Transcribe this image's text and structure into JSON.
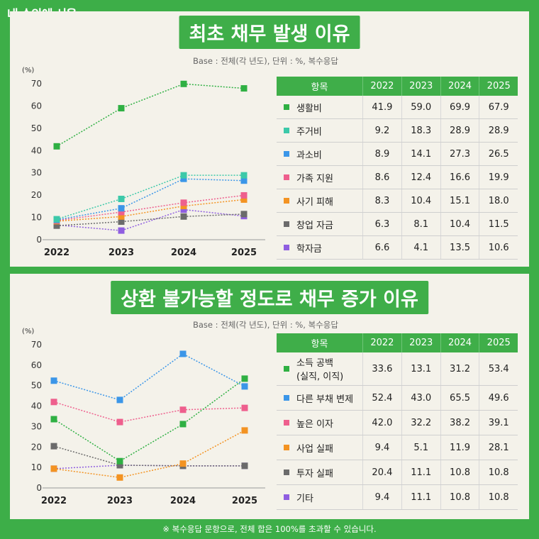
{
  "brand": "내 손안에 서울",
  "footnote": "※ 복수응답 문항으로, 전체 합은 100%를 초과할 수 있습니다.",
  "table_header": {
    "item": "항목",
    "years": [
      "2022",
      "2023",
      "2024",
      "2025"
    ]
  },
  "chart_data": [
    {
      "type": "line",
      "title": "최초 채무 발생 이유",
      "subtitle": "Base : 전체(각 년도), 단위 : %, 복수응답",
      "ylabel": "(%)",
      "ylim": [
        0,
        70
      ],
      "yticks": [
        "0",
        "10",
        "20",
        "30",
        "40",
        "50",
        "60",
        "70"
      ],
      "x": [
        "2022",
        "2023",
        "2024",
        "2025"
      ],
      "series": [
        {
          "name": "생활비",
          "color": "#2fb043",
          "values": [
            41.9,
            59.0,
            69.9,
            67.9
          ],
          "labels": [
            "41.9",
            "59.0",
            "69.9",
            "67.9"
          ]
        },
        {
          "name": "주거비",
          "color": "#3cc9a9",
          "values": [
            9.2,
            18.3,
            28.9,
            28.9
          ],
          "labels": [
            "9.2",
            "18.3",
            "28.9",
            "28.9"
          ]
        },
        {
          "name": "과소비",
          "color": "#3b96e8",
          "values": [
            8.9,
            14.1,
            27.3,
            26.5
          ],
          "labels": [
            "8.9",
            "14.1",
            "27.3",
            "26.5"
          ]
        },
        {
          "name": "가족 지원",
          "color": "#ee5f8d",
          "values": [
            8.6,
            12.4,
            16.6,
            19.9
          ],
          "labels": [
            "8.6",
            "12.4",
            "16.6",
            "19.9"
          ]
        },
        {
          "name": "사기 피해",
          "color": "#f39322",
          "values": [
            8.3,
            10.4,
            15.1,
            18.0
          ],
          "labels": [
            "8.3",
            "10.4",
            "15.1",
            "18.0"
          ]
        },
        {
          "name": "창업 자금",
          "color": "#6b6b6b",
          "values": [
            6.3,
            8.1,
            10.4,
            11.5
          ],
          "labels": [
            "6.3",
            "8.1",
            "10.4",
            "11.5"
          ]
        },
        {
          "name": "학자금",
          "color": "#8f5ee0",
          "values": [
            6.6,
            4.1,
            13.5,
            10.6
          ],
          "labels": [
            "6.6",
            "4.1",
            "13.5",
            "10.6"
          ]
        }
      ]
    },
    {
      "type": "line",
      "title": "상환 불가능할 정도로 채무 증가 이유",
      "subtitle": "Base : 전체(각 년도), 단위 : %, 복수응답",
      "ylabel": "(%)",
      "ylim": [
        0,
        70
      ],
      "yticks": [
        "0",
        "10",
        "20",
        "30",
        "40",
        "50",
        "60",
        "70"
      ],
      "x": [
        "2022",
        "2023",
        "2024",
        "2025"
      ],
      "series": [
        {
          "name": "소득 공백\n(실직, 이직)",
          "color": "#2fb043",
          "values": [
            33.6,
            13.1,
            31.2,
            53.4
          ],
          "labels": [
            "33.6",
            "13.1",
            "31.2",
            "53.4"
          ]
        },
        {
          "name": "다른 부채 변제",
          "color": "#3b96e8",
          "values": [
            52.4,
            43.0,
            65.5,
            49.6
          ],
          "labels": [
            "52.4",
            "43.0",
            "65.5",
            "49.6"
          ]
        },
        {
          "name": "높은 이자",
          "color": "#ee5f8d",
          "values": [
            42.0,
            32.2,
            38.2,
            39.1
          ],
          "labels": [
            "42.0",
            "32.2",
            "38.2",
            "39.1"
          ]
        },
        {
          "name": "사업 실패",
          "color": "#f39322",
          "values": [
            9.4,
            5.1,
            11.9,
            28.1
          ],
          "labels": [
            "9.4",
            "5.1",
            "11.9",
            "28.1"
          ]
        },
        {
          "name": "투자 실패",
          "color": "#6b6b6b",
          "values": [
            20.4,
            11.1,
            10.8,
            10.8
          ],
          "labels": [
            "20.4",
            "11.1",
            "10.8",
            "10.8"
          ]
        },
        {
          "name": "기타",
          "color": "#8f5ee0",
          "values": [
            9.4,
            11.1,
            10.8,
            10.8
          ],
          "labels": [
            "9.4",
            "11.1",
            "10.8",
            "10.8"
          ]
        }
      ]
    }
  ]
}
